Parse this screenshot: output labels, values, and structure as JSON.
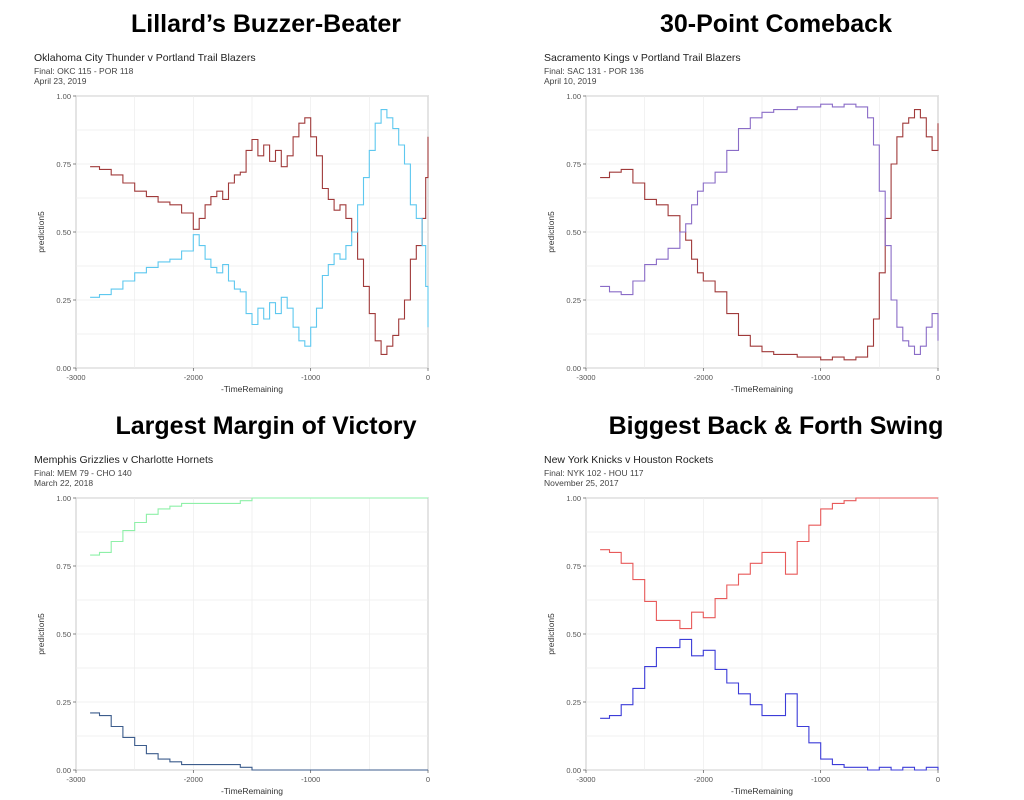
{
  "panels": [
    {
      "heading": "Lillard’s Buzzer-Beater",
      "subtitle": "Oklahoma City Thunder v Portland Trail Blazers",
      "score": "Final: OKC 115 - POR 118",
      "date": "April 23, 2019"
    },
    {
      "heading": "30-Point Comeback",
      "subtitle": "Sacramento Kings v Portland Trail Blazers",
      "score": "Final: SAC 131 - POR 136",
      "date": "April 10, 2019"
    },
    {
      "heading": "Largest Margin of Victory",
      "subtitle": "Memphis Grizzlies v Charlotte Hornets",
      "score": "Final: MEM 79 - CHO 140",
      "date": "March 22, 2018"
    },
    {
      "heading": "Biggest Back & Forth Swing",
      "subtitle": "New York Knicks v Houston Rockets",
      "score": "Final: NYK 102 - HOU 117",
      "date": "November 25, 2017"
    }
  ],
  "chart_data": [
    {
      "type": "line",
      "xlabel": "-TimeRemaining",
      "ylabel": "prediction5",
      "xlim": [
        -3000,
        0
      ],
      "ylim": [
        0,
        1
      ],
      "x_ticks": [
        "-3000",
        "-2000",
        "-1000",
        "0"
      ],
      "y_ticks": [
        "0.00",
        "0.25",
        "0.50",
        "0.75",
        "1.00"
      ],
      "grid": true,
      "x": [
        -2880,
        -2800,
        -2700,
        -2600,
        -2500,
        -2400,
        -2300,
        -2200,
        -2100,
        -2000,
        -1950,
        -1900,
        -1850,
        -1800,
        -1750,
        -1700,
        -1650,
        -1600,
        -1550,
        -1500,
        -1450,
        -1400,
        -1350,
        -1300,
        -1250,
        -1200,
        -1150,
        -1100,
        -1050,
        -1000,
        -950,
        -900,
        -850,
        -800,
        -750,
        -700,
        -650,
        -600,
        -550,
        -500,
        -450,
        -400,
        -350,
        -300,
        -250,
        -200,
        -150,
        -100,
        -50,
        -20,
        0
      ],
      "series": [
        {
          "color": "#a03a3a",
          "values": [
            0.74,
            0.73,
            0.71,
            0.68,
            0.65,
            0.63,
            0.61,
            0.6,
            0.57,
            0.51,
            0.55,
            0.6,
            0.63,
            0.65,
            0.62,
            0.68,
            0.71,
            0.72,
            0.8,
            0.84,
            0.78,
            0.82,
            0.76,
            0.8,
            0.74,
            0.78,
            0.85,
            0.9,
            0.92,
            0.85,
            0.78,
            0.66,
            0.62,
            0.58,
            0.6,
            0.55,
            0.5,
            0.4,
            0.3,
            0.2,
            0.1,
            0.05,
            0.08,
            0.12,
            0.18,
            0.25,
            0.4,
            0.45,
            0.55,
            0.7,
            0.85
          ]
        },
        {
          "color": "#5ec8ef",
          "values": [
            0.26,
            0.27,
            0.29,
            0.32,
            0.35,
            0.37,
            0.39,
            0.4,
            0.43,
            0.49,
            0.45,
            0.4,
            0.37,
            0.35,
            0.38,
            0.32,
            0.29,
            0.28,
            0.2,
            0.16,
            0.22,
            0.18,
            0.24,
            0.2,
            0.26,
            0.22,
            0.15,
            0.1,
            0.08,
            0.15,
            0.22,
            0.34,
            0.38,
            0.42,
            0.4,
            0.45,
            0.5,
            0.6,
            0.7,
            0.8,
            0.9,
            0.95,
            0.92,
            0.88,
            0.82,
            0.75,
            0.6,
            0.55,
            0.45,
            0.3,
            0.15
          ]
        }
      ]
    },
    {
      "type": "line",
      "xlabel": "-TimeRemaining",
      "ylabel": "prediction5",
      "xlim": [
        -3000,
        0
      ],
      "ylim": [
        0,
        1
      ],
      "x_ticks": [
        "-3000",
        "-2000",
        "-1000",
        "0"
      ],
      "y_ticks": [
        "0.00",
        "0.25",
        "0.50",
        "0.75",
        "1.00"
      ],
      "grid": true,
      "x": [
        -2880,
        -2800,
        -2700,
        -2600,
        -2500,
        -2400,
        -2300,
        -2200,
        -2150,
        -2100,
        -2050,
        -2000,
        -1900,
        -1800,
        -1700,
        -1600,
        -1500,
        -1400,
        -1300,
        -1200,
        -1100,
        -1000,
        -900,
        -800,
        -700,
        -600,
        -550,
        -500,
        -450,
        -400,
        -350,
        -300,
        -250,
        -200,
        -150,
        -100,
        -50,
        0
      ],
      "series": [
        {
          "color": "#a03a3a",
          "values": [
            0.7,
            0.72,
            0.73,
            0.68,
            0.62,
            0.6,
            0.56,
            0.5,
            0.47,
            0.4,
            0.35,
            0.32,
            0.28,
            0.2,
            0.12,
            0.08,
            0.06,
            0.05,
            0.05,
            0.04,
            0.04,
            0.03,
            0.04,
            0.03,
            0.04,
            0.08,
            0.18,
            0.35,
            0.55,
            0.75,
            0.85,
            0.9,
            0.92,
            0.95,
            0.92,
            0.85,
            0.8,
            0.9
          ]
        },
        {
          "color": "#8a6cc7",
          "values": [
            0.3,
            0.28,
            0.27,
            0.32,
            0.38,
            0.4,
            0.44,
            0.5,
            0.53,
            0.6,
            0.65,
            0.68,
            0.72,
            0.8,
            0.88,
            0.92,
            0.94,
            0.95,
            0.95,
            0.96,
            0.96,
            0.97,
            0.96,
            0.97,
            0.96,
            0.92,
            0.82,
            0.65,
            0.45,
            0.25,
            0.15,
            0.1,
            0.08,
            0.05,
            0.08,
            0.15,
            0.2,
            0.1
          ]
        }
      ]
    },
    {
      "type": "line",
      "xlabel": "-TimeRemaining",
      "ylabel": "prediction5",
      "xlim": [
        -3000,
        0
      ],
      "ylim": [
        0,
        1
      ],
      "x_ticks": [
        "-3000",
        "-2000",
        "-1000",
        "0"
      ],
      "y_ticks": [
        "0.00",
        "0.25",
        "0.50",
        "0.75",
        "1.00"
      ],
      "grid": true,
      "x": [
        -2880,
        -2800,
        -2700,
        -2600,
        -2500,
        -2400,
        -2300,
        -2200,
        -2100,
        -2000,
        -1900,
        -1800,
        -1700,
        -1600,
        -1500,
        -1000,
        -500,
        0
      ],
      "series": [
        {
          "color": "#8ef0a8",
          "values": [
            0.79,
            0.8,
            0.84,
            0.88,
            0.91,
            0.94,
            0.96,
            0.97,
            0.98,
            0.98,
            0.98,
            0.98,
            0.98,
            0.99,
            1.0,
            1.0,
            1.0,
            1.0
          ]
        },
        {
          "color": "#3c5c8c",
          "values": [
            0.21,
            0.2,
            0.16,
            0.12,
            0.09,
            0.06,
            0.04,
            0.03,
            0.02,
            0.02,
            0.02,
            0.02,
            0.02,
            0.01,
            0.0,
            0.0,
            0.0,
            0.0
          ]
        }
      ]
    },
    {
      "type": "line",
      "xlabel": "-TimeRemaining",
      "ylabel": "prediction5",
      "xlim": [
        -3000,
        0
      ],
      "ylim": [
        0,
        1
      ],
      "x_ticks": [
        "-3000",
        "-2000",
        "-1000",
        "0"
      ],
      "y_ticks": [
        "0.00",
        "0.25",
        "0.50",
        "0.75",
        "1.00"
      ],
      "grid": true,
      "x": [
        -2880,
        -2800,
        -2700,
        -2600,
        -2500,
        -2400,
        -2300,
        -2200,
        -2100,
        -2000,
        -1900,
        -1800,
        -1700,
        -1600,
        -1500,
        -1400,
        -1300,
        -1200,
        -1100,
        -1000,
        -900,
        -800,
        -700,
        -600,
        -500,
        -400,
        -300,
        -200,
        -100,
        0
      ],
      "series": [
        {
          "color": "#e85a5a",
          "values": [
            0.81,
            0.8,
            0.76,
            0.7,
            0.62,
            0.55,
            0.55,
            0.52,
            0.58,
            0.56,
            0.63,
            0.68,
            0.72,
            0.76,
            0.8,
            0.8,
            0.72,
            0.84,
            0.9,
            0.96,
            0.98,
            0.99,
            1.0,
            1.0,
            1.0,
            1.0,
            1.0,
            1.0,
            1.0,
            1.0
          ]
        },
        {
          "color": "#3c3cd8",
          "values": [
            0.19,
            0.2,
            0.24,
            0.3,
            0.38,
            0.45,
            0.45,
            0.48,
            0.42,
            0.44,
            0.37,
            0.32,
            0.28,
            0.24,
            0.2,
            0.2,
            0.28,
            0.16,
            0.1,
            0.04,
            0.02,
            0.01,
            0.01,
            0.0,
            0.01,
            0.0,
            0.01,
            0.0,
            0.01,
            0.0
          ]
        }
      ]
    }
  ]
}
